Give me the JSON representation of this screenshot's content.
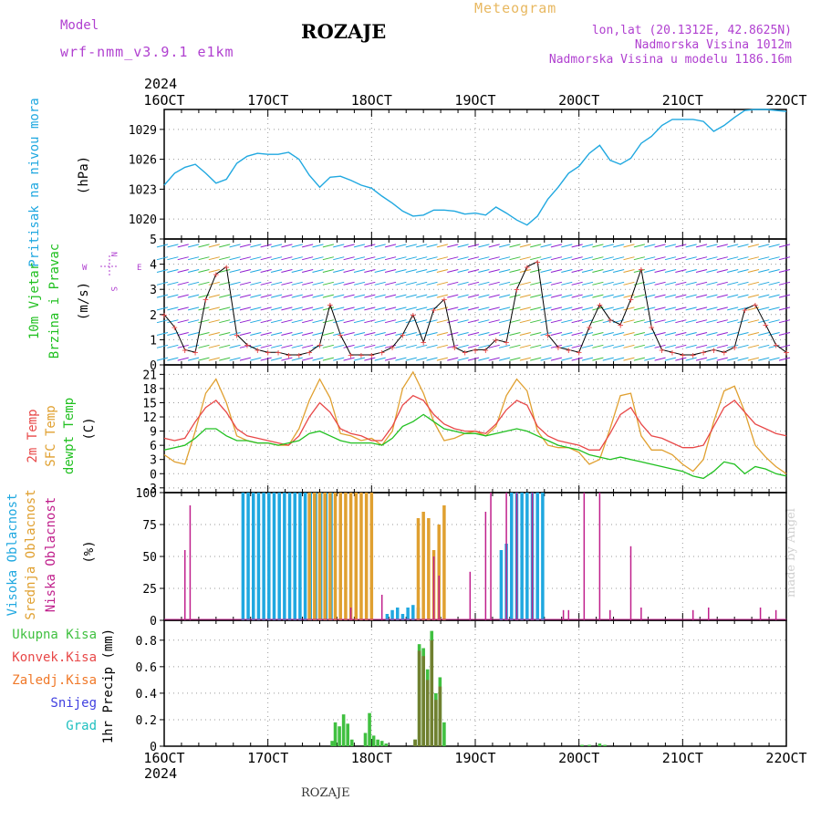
{
  "header": {
    "model_label": "Model",
    "model_name": "wrf-nmm_v3.9.1 e1km",
    "station_title": "ROZAJE",
    "meteogram_label": "Meteogram",
    "location_line1": "lon,lat (20.1312E, 42.8625N)",
    "location_line2": "Nadmorska Visina 1012m",
    "location_line3": "Nadmorska Visina u modelu 1186.16m"
  },
  "footer": {
    "station": "ROZAJE",
    "watermark": "made by Angel"
  },
  "colors": {
    "pressure": "#20a8e0",
    "temp2m": "#e84848",
    "sfc": "#e0a030",
    "dewpt": "#20c020",
    "high_cloud": "#20a8e0",
    "mid_cloud": "#e0a030",
    "low_cloud": "#c0208c",
    "total_precip": "#40c040",
    "conv_precip": "#e84848",
    "frozen": "#f07828",
    "snow": "#4040e0",
    "graupel": "#20c0c0",
    "wind_label": "#b040d0"
  },
  "chart_data": [
    {
      "id": "pressure",
      "type": "line",
      "ylabel_lines": [
        "Pritisak na nivou mora",
        "(hPa)"
      ],
      "ylim": [
        1018,
        1031
      ],
      "yticks": [
        1020,
        1023,
        1026,
        1029
      ],
      "xlim": [
        16,
        22
      ],
      "x_top_year": "2024",
      "x_top_ticks": [
        "16OCT",
        "17OCT",
        "18OCT",
        "19OCT",
        "20OCT",
        "21OCT",
        "22OCT"
      ],
      "series": [
        {
          "x": [
            16.0,
            16.1,
            16.2,
            16.3,
            16.4,
            16.5,
            16.6,
            16.7,
            16.8,
            16.9,
            17.0,
            17.1,
            17.2,
            17.3,
            17.4,
            17.5,
            17.6,
            17.7,
            17.8,
            17.9,
            18.0,
            18.1,
            18.2,
            18.3,
            18.4,
            18.5,
            18.6,
            18.7,
            18.8,
            18.9,
            19.0,
            19.1,
            19.2,
            19.3,
            19.4,
            19.5,
            19.6,
            19.7,
            19.8,
            19.9,
            20.0,
            20.1,
            20.2,
            20.3,
            20.4,
            20.5,
            20.6,
            20.7,
            20.8,
            20.9,
            21.0,
            21.1,
            21.2,
            21.3,
            21.4,
            21.5,
            21.6,
            21.7,
            21.8,
            21.9,
            22.0
          ],
          "values": [
            1023.4,
            1024.6,
            1025.2,
            1025.5,
            1024.6,
            1023.6,
            1024.0,
            1025.6,
            1026.3,
            1026.6,
            1026.5,
            1026.5,
            1026.7,
            1026.0,
            1024.4,
            1023.2,
            1024.2,
            1024.3,
            1023.9,
            1023.4,
            1023.1,
            1022.3,
            1021.6,
            1020.8,
            1020.3,
            1020.4,
            1020.9,
            1020.9,
            1020.8,
            1020.5,
            1020.6,
            1020.4,
            1021.2,
            1020.6,
            1019.9,
            1019.4,
            1020.3,
            1022.0,
            1023.2,
            1024.6,
            1025.3,
            1026.6,
            1027.4,
            1025.9,
            1025.5,
            1026.1,
            1027.6,
            1028.3,
            1029.4,
            1030.0,
            1030.0,
            1030.0,
            1029.8,
            1028.8,
            1029.4,
            1030.2,
            1030.9,
            1031.0,
            1031.0,
            1030.9,
            1030.8
          ]
        }
      ]
    },
    {
      "id": "wind",
      "type": "line",
      "ylabel_lines": [
        "10m Vjetar",
        "Brzina i Pravac",
        "(m/s)"
      ],
      "ylim": [
        0,
        5
      ],
      "yticks": [
        0,
        1,
        2,
        3,
        4,
        5
      ],
      "xlim": [
        16,
        22
      ],
      "compass": {
        "north": "N",
        "south": "S",
        "east": "E",
        "west": "W"
      },
      "series": [
        {
          "name": "speed",
          "x": [
            16.0,
            16.1,
            16.2,
            16.3,
            16.4,
            16.5,
            16.6,
            16.7,
            16.8,
            16.9,
            17.0,
            17.1,
            17.2,
            17.3,
            17.4,
            17.5,
            17.6,
            17.7,
            17.8,
            17.9,
            18.0,
            18.1,
            18.2,
            18.3,
            18.4,
            18.5,
            18.6,
            18.7,
            18.8,
            18.9,
            19.0,
            19.1,
            19.2,
            19.3,
            19.4,
            19.5,
            19.6,
            19.7,
            19.8,
            19.9,
            20.0,
            20.1,
            20.2,
            20.3,
            20.4,
            20.5,
            20.6,
            20.7,
            20.8,
            20.9,
            21.0,
            21.1,
            21.2,
            21.3,
            21.4,
            21.5,
            21.6,
            21.7,
            21.8,
            21.9,
            22.0
          ],
          "values": [
            2.0,
            1.5,
            0.6,
            0.5,
            2.6,
            3.6,
            3.9,
            1.2,
            0.8,
            0.6,
            0.5,
            0.5,
            0.4,
            0.4,
            0.5,
            0.8,
            2.4,
            1.2,
            0.4,
            0.4,
            0.4,
            0.5,
            0.7,
            1.2,
            2.0,
            0.9,
            2.2,
            2.6,
            0.7,
            0.5,
            0.6,
            0.6,
            1.0,
            0.9,
            3.0,
            3.9,
            4.1,
            1.2,
            0.7,
            0.6,
            0.5,
            1.5,
            2.4,
            1.8,
            1.6,
            2.6,
            3.8,
            1.5,
            0.6,
            0.5,
            0.4,
            0.4,
            0.5,
            0.6,
            0.5,
            0.7,
            2.2,
            2.4,
            1.6,
            0.8,
            0.5
          ]
        }
      ]
    },
    {
      "id": "temperature",
      "type": "line",
      "ylabel_lines": [
        "2m Temp",
        "SFC Temp",
        "dewpt Temp",
        "(C)"
      ],
      "ylim": [
        -4,
        23
      ],
      "yticks": [
        -3,
        0,
        3,
        6,
        9,
        12,
        15,
        18,
        21
      ],
      "xlim": [
        16,
        22
      ],
      "series": [
        {
          "name": "2m Temp",
          "x": [
            16.0,
            16.1,
            16.2,
            16.3,
            16.4,
            16.5,
            16.6,
            16.7,
            16.8,
            16.9,
            17.0,
            17.1,
            17.2,
            17.3,
            17.4,
            17.5,
            17.6,
            17.7,
            17.8,
            17.9,
            18.0,
            18.1,
            18.2,
            18.3,
            18.4,
            18.5,
            18.6,
            18.7,
            18.8,
            18.9,
            19.0,
            19.1,
            19.2,
            19.3,
            19.4,
            19.5,
            19.6,
            19.7,
            19.8,
            19.9,
            20.0,
            20.1,
            20.2,
            20.3,
            20.4,
            20.5,
            20.6,
            20.7,
            20.8,
            20.9,
            21.0,
            21.1,
            21.2,
            21.3,
            21.4,
            21.5,
            21.6,
            21.7,
            21.8,
            21.9,
            22.0
          ],
          "values": [
            7.5,
            7.0,
            7.5,
            11.0,
            14.0,
            15.5,
            13.0,
            9.5,
            8.0,
            7.5,
            7.0,
            6.5,
            6.0,
            8.0,
            12.0,
            15.0,
            13.0,
            9.5,
            8.5,
            8.0,
            7.0,
            7.0,
            10.0,
            14.5,
            16.5,
            15.5,
            12.5,
            10.5,
            9.5,
            9.0,
            9.0,
            8.5,
            10.5,
            13.5,
            15.5,
            14.5,
            10.0,
            8.0,
            7.0,
            6.5,
            6.0,
            5.0,
            5.0,
            8.5,
            12.5,
            14.0,
            10.5,
            8.0,
            7.5,
            6.5,
            5.5,
            5.5,
            6.0,
            10.0,
            14.0,
            15.5,
            13.0,
            10.5,
            9.5,
            8.5,
            8.0
          ]
        },
        {
          "name": "SFC Temp",
          "x": [
            16.0,
            16.1,
            16.2,
            16.3,
            16.4,
            16.5,
            16.6,
            16.7,
            16.8,
            16.9,
            17.0,
            17.1,
            17.2,
            17.3,
            17.4,
            17.5,
            17.6,
            17.7,
            17.8,
            17.9,
            18.0,
            18.1,
            18.2,
            18.3,
            18.4,
            18.5,
            18.6,
            18.7,
            18.8,
            18.9,
            19.0,
            19.1,
            19.2,
            19.3,
            19.4,
            19.5,
            19.6,
            19.7,
            19.8,
            19.9,
            20.0,
            20.1,
            20.2,
            20.3,
            20.4,
            20.5,
            20.6,
            20.7,
            20.8,
            20.9,
            21.0,
            21.1,
            21.2,
            21.3,
            21.4,
            21.5,
            21.6,
            21.7,
            21.8,
            21.9,
            22.0
          ],
          "values": [
            4.0,
            2.5,
            2.0,
            9.0,
            17.0,
            20.0,
            15.0,
            8.0,
            7.0,
            6.5,
            6.5,
            6.0,
            6.0,
            9.5,
            15.5,
            20.0,
            16.0,
            8.5,
            8.0,
            7.0,
            7.5,
            6.0,
            9.0,
            18.0,
            21.5,
            17.0,
            11.0,
            7.0,
            7.5,
            8.5,
            9.0,
            8.0,
            10.0,
            16.5,
            20.0,
            17.5,
            9.0,
            6.0,
            5.5,
            5.5,
            4.5,
            2.0,
            3.0,
            9.5,
            16.5,
            17.0,
            8.0,
            5.0,
            5.0,
            4.0,
            2.0,
            0.5,
            3.0,
            11.0,
            17.5,
            18.5,
            13.0,
            6.0,
            3.5,
            1.5,
            0.0
          ]
        },
        {
          "name": "dewpt Temp",
          "x": [
            16.0,
            16.1,
            16.2,
            16.3,
            16.4,
            16.5,
            16.6,
            16.7,
            16.8,
            16.9,
            17.0,
            17.1,
            17.2,
            17.3,
            17.4,
            17.5,
            17.6,
            17.7,
            17.8,
            17.9,
            18.0,
            18.1,
            18.2,
            18.3,
            18.4,
            18.5,
            18.6,
            18.7,
            18.8,
            18.9,
            19.0,
            19.1,
            19.2,
            19.3,
            19.4,
            19.5,
            19.6,
            19.7,
            19.8,
            19.9,
            20.0,
            20.1,
            20.2,
            20.3,
            20.4,
            20.5,
            20.6,
            20.7,
            20.8,
            20.9,
            21.0,
            21.1,
            21.2,
            21.3,
            21.4,
            21.5,
            21.6,
            21.7,
            21.8,
            21.9,
            22.0
          ],
          "values": [
            5.0,
            5.5,
            6.0,
            7.5,
            9.5,
            9.5,
            8.0,
            7.0,
            7.0,
            6.5,
            6.5,
            6.0,
            6.5,
            7.0,
            8.5,
            9.0,
            8.0,
            7.0,
            6.5,
            6.5,
            6.5,
            6.0,
            7.5,
            10.0,
            11.0,
            12.5,
            11.0,
            9.5,
            9.0,
            8.5,
            8.5,
            8.0,
            8.5,
            9.0,
            9.5,
            9.0,
            8.0,
            7.0,
            6.0,
            5.5,
            5.0,
            4.0,
            3.5,
            3.0,
            3.5,
            3.0,
            2.5,
            2.0,
            1.5,
            1.0,
            0.5,
            -0.5,
            -1.0,
            0.5,
            2.5,
            2.0,
            0.0,
            1.5,
            1.0,
            0.0,
            -0.5
          ]
        }
      ]
    },
    {
      "id": "clouds",
      "type": "bar",
      "ylabel_lines": [
        "Visoka Oblacnost",
        "Srednja Oblacnost",
        "Niska Oblacnost",
        "(%)"
      ],
      "ylim": [
        0,
        100
      ],
      "yticks": [
        0,
        25,
        50,
        75,
        100
      ],
      "xlim": [
        16,
        22
      ],
      "series": [
        {
          "name": "Visoka Oblacnost",
          "x": [
            16.76,
            16.81,
            16.86,
            16.91,
            16.96,
            17.01,
            17.06,
            17.11,
            17.16,
            17.21,
            17.26,
            17.31,
            17.36,
            17.41,
            17.46,
            17.51,
            17.56,
            17.61,
            18.15,
            18.2,
            18.25,
            18.3,
            18.35,
            18.4,
            18.45,
            19.25,
            19.3,
            19.35,
            19.4,
            19.45,
            19.5,
            19.55,
            19.6,
            19.65
          ],
          "values": [
            100,
            100,
            100,
            100,
            100,
            100,
            100,
            100,
            100,
            100,
            100,
            100,
            100,
            100,
            100,
            100,
            100,
            100,
            5,
            8,
            10,
            5,
            10,
            12,
            10,
            55,
            60,
            100,
            100,
            100,
            100,
            100,
            100,
            100
          ]
        },
        {
          "name": "Srednja Oblacnost",
          "x": [
            17.4,
            17.45,
            17.5,
            17.55,
            17.6,
            17.65,
            17.7,
            17.75,
            17.8,
            17.85,
            17.9,
            17.95,
            18.0,
            18.45,
            18.5,
            18.55,
            18.6,
            18.65,
            18.7
          ],
          "values": [
            100,
            100,
            100,
            100,
            100,
            100,
            100,
            100,
            100,
            100,
            100,
            100,
            100,
            80,
            85,
            80,
            55,
            75,
            90
          ]
        },
        {
          "name": "Niska Oblacnost",
          "x": [
            16.2,
            16.25,
            17.8,
            18.1,
            18.6,
            18.65,
            18.95,
            19.1,
            19.15,
            19.3,
            19.4,
            19.55,
            19.85,
            19.9,
            20.05,
            20.2,
            20.3,
            20.5,
            20.6,
            21.1,
            21.25,
            21.75,
            21.9
          ],
          "values": [
            55,
            90,
            10,
            20,
            50,
            35,
            38,
            85,
            100,
            100,
            100,
            100,
            8,
            8,
            100,
            100,
            8,
            58,
            10,
            8,
            10,
            10,
            8
          ]
        }
      ]
    },
    {
      "id": "precipitation",
      "type": "bar",
      "ylabel_lines": [
        "1hr Precip (mm)"
      ],
      "legend": [
        "Ukupna Kisa",
        "Konvek.Kisa",
        "Zaledj.Kisa",
        "Snijeg",
        "Grad"
      ],
      "ylim": [
        0,
        0.95
      ],
      "yticks": [
        0,
        0.2,
        0.4,
        0.6,
        0.8
      ],
      "xlim": [
        16,
        22
      ],
      "x_bottom_year": "2024",
      "x_bottom_ticks": [
        "16OCT",
        "17OCT",
        "18OCT",
        "19OCT",
        "20OCT",
        "21OCT",
        "22OCT"
      ],
      "series": [
        {
          "name": "Ukupna Kisa",
          "x": [
            17.62,
            17.65,
            17.69,
            17.73,
            17.77,
            17.81,
            17.94,
            17.98,
            18.02,
            18.06,
            18.1,
            18.14,
            18.42,
            18.46,
            18.5,
            18.54,
            18.58,
            18.62,
            18.66,
            18.7,
            20.03,
            20.1,
            20.2,
            20.25
          ],
          "values": [
            0.04,
            0.18,
            0.15,
            0.24,
            0.17,
            0.05,
            0.1,
            0.25,
            0.08,
            0.05,
            0.04,
            0.02,
            0.05,
            0.77,
            0.74,
            0.58,
            0.87,
            0.4,
            0.52,
            0.18,
            0.01,
            0.01,
            0.02,
            0.01
          ]
        },
        {
          "name": "Konvek.Kisa",
          "x": [
            18.42,
            18.46,
            18.5,
            18.54,
            18.58,
            18.62,
            18.66
          ],
          "values": [
            0.05,
            0.72,
            0.68,
            0.5,
            0.8,
            0.35,
            0.45
          ]
        }
      ]
    }
  ]
}
